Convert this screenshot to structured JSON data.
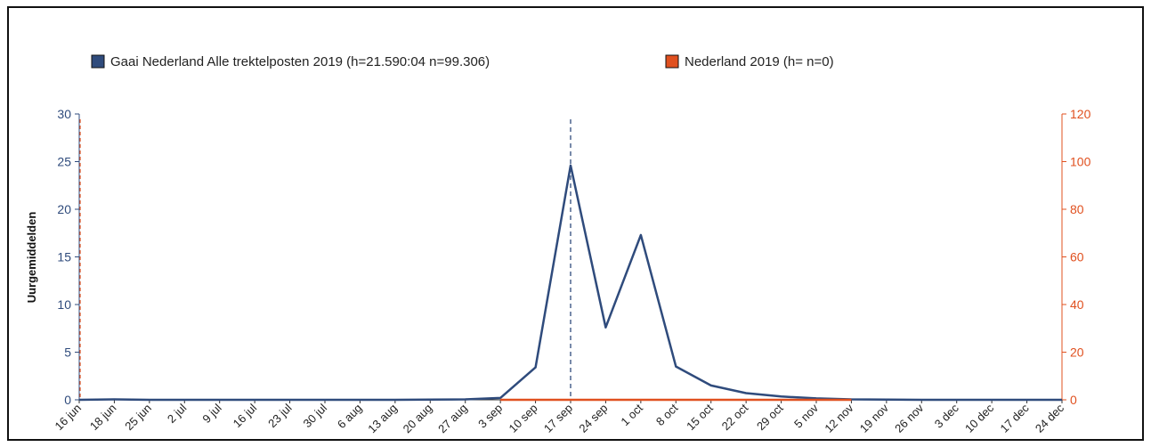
{
  "chart_data": {
    "type": "line",
    "title": "",
    "ylabel": "Uurgemiddelden",
    "ylabel_right": "",
    "ylim": [
      0,
      30
    ],
    "ylim_right": [
      0,
      120
    ],
    "yticks": [
      "0",
      "5",
      "10",
      "15",
      "20",
      "25",
      "30"
    ],
    "yticks_right": [
      "0",
      "20",
      "40",
      "60",
      "80",
      "100",
      "120"
    ],
    "categories": [
      "16 jun",
      "18 jun",
      "25 jun",
      "2 jul",
      "9 jul",
      "16 jul",
      "23 jul",
      "30 jul",
      "6 aug",
      "13 aug",
      "20 aug",
      "27 aug",
      "3 sep",
      "10 sep",
      "17 sep",
      "24 sep",
      "1 oct",
      "8 oct",
      "15 oct",
      "22 oct",
      "29 oct",
      "5 nov",
      "12 nov",
      "19 nov",
      "26 nov",
      "3 dec",
      "10 dec",
      "17 dec",
      "24 dec"
    ],
    "grid": false,
    "legend_position": "top",
    "series": [
      {
        "name": "Gaai Nederland Alle trektelposten 2019 (h=21.590:04 n=99.306)",
        "color": "#2f4b7c",
        "axis": "left",
        "values": [
          0,
          0.05,
          0,
          0,
          0,
          0,
          0,
          0,
          0,
          0,
          0.02,
          0.05,
          0.2,
          3.4,
          24.6,
          7.6,
          17.3,
          3.5,
          1.5,
          0.7,
          0.35,
          0.15,
          0.05,
          0.03,
          0,
          0,
          0,
          0,
          0
        ]
      },
      {
        "name": "Nederland  2019 (h= n=0)",
        "color": "#e0501f",
        "axis": "right",
        "values": [
          0,
          0,
          0,
          0,
          0,
          0,
          0,
          0,
          0,
          0,
          0,
          0,
          0,
          0,
          0,
          0,
          0,
          0,
          0,
          0,
          0,
          0,
          0,
          0,
          0,
          0,
          0,
          0,
          0
        ]
      }
    ],
    "marker_category": "17 sep"
  }
}
